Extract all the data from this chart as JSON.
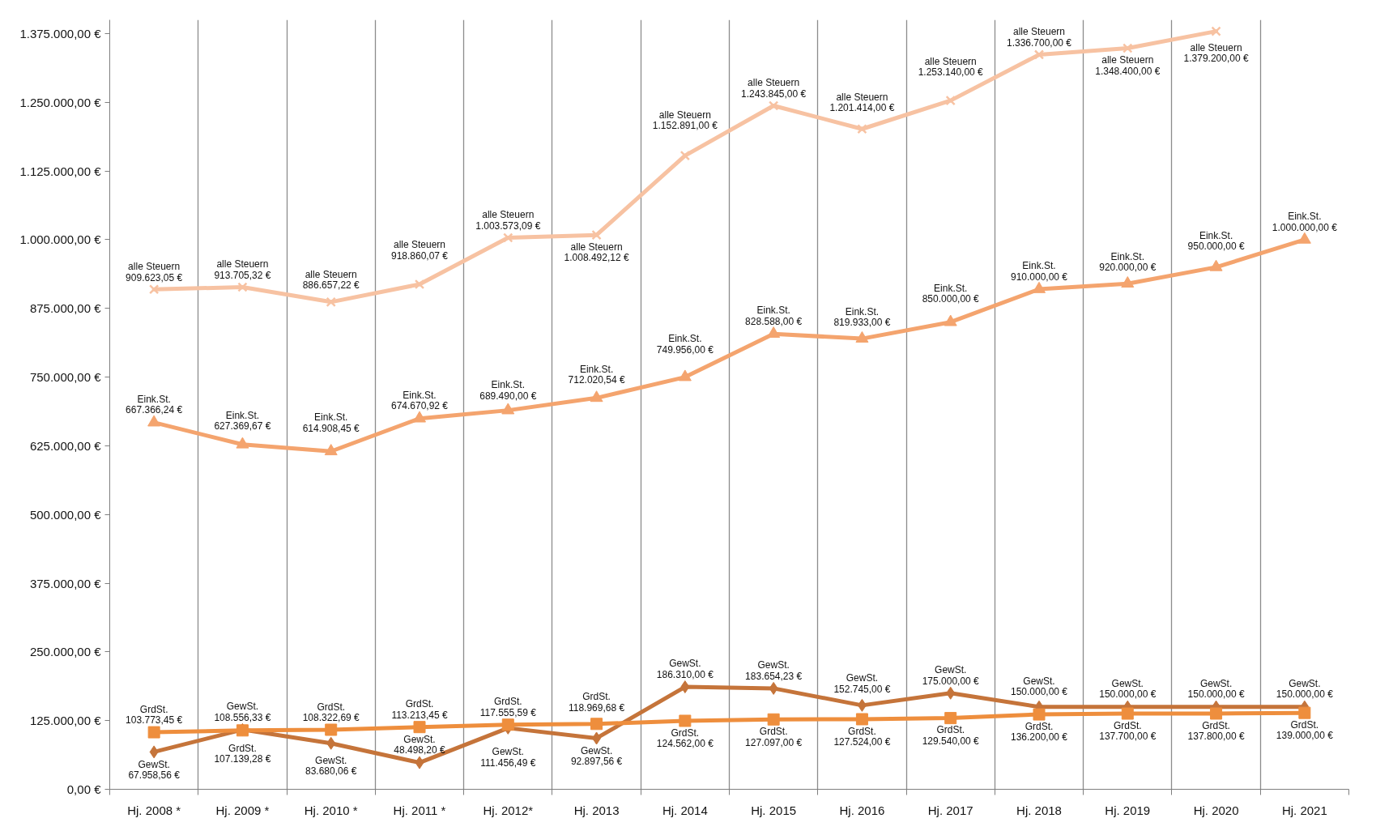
{
  "chart_data": {
    "type": "line",
    "categories": [
      "Hj. 2008 *",
      "Hj. 2009 *",
      "Hj. 2010 *",
      "Hj. 2011 *",
      "Hj. 2012*",
      "Hj. 2013",
      "Hj. 2014",
      "Hj. 2015",
      "Hj. 2016",
      "Hj. 2017",
      "Hj. 2018",
      "Hj. 2019",
      "Hj. 2020",
      "Hj. 2021"
    ],
    "ylim": [
      0,
      1400000
    ],
    "yticks": [
      {
        "value": 0,
        "label": "0,00 €"
      },
      {
        "value": 125000,
        "label": "125.000,00 €"
      },
      {
        "value": 250000,
        "label": "250.000,00 €"
      },
      {
        "value": 375000,
        "label": "375.000,00 €"
      },
      {
        "value": 500000,
        "label": "500.000,00 €"
      },
      {
        "value": 625000,
        "label": "625.000,00 €"
      },
      {
        "value": 750000,
        "label": "750.000,00 €"
      },
      {
        "value": 875000,
        "label": "875.000,00 €"
      },
      {
        "value": 1000000,
        "label": "1.000.000,00 €"
      },
      {
        "value": 1125000,
        "label": "1.125.000,00 €"
      },
      {
        "value": 1250000,
        "label": "1.250.000,00 €"
      },
      {
        "value": 1375000,
        "label": "1.375.000,00 €"
      }
    ],
    "grid": "x",
    "line_style": "solid",
    "series": [
      {
        "name": "alle Steuern",
        "color": "#f7c2a2",
        "marker": "cross",
        "values": [
          909623.05,
          913705.32,
          886657.22,
          918860.07,
          1003573.09,
          1008492.12,
          1152891.0,
          1243845.0,
          1201414.0,
          1253140.0,
          1336700.0,
          1348400.0,
          1379200.0,
          null
        ],
        "value_labels": [
          "909.623,05 €",
          "913.705,32 €",
          "886.657,22 €",
          "918.860,07 €",
          "1.003.573,09 €",
          "1.008.492,12 €",
          "1.152.891,00 €",
          "1.243.845,00 €",
          "1.201.414,00 €",
          "1.253.140,00 €",
          "1.336.700,00 €",
          "1.348.400,00 €",
          "1.379.200,00 €",
          null
        ]
      },
      {
        "name": "Eink.St.",
        "color": "#f4a46e",
        "marker": "triangle",
        "values": [
          667366.24,
          627369.67,
          614908.45,
          674670.92,
          689490.0,
          712020.54,
          749956.0,
          828588.0,
          819933.0,
          850000.0,
          910000.0,
          920000.0,
          950000.0,
          1000000.0
        ],
        "value_labels": [
          "667.366,24 €",
          "627.369,67 €",
          "614.908,45 €",
          "674.670,92 €",
          "689.490,00 €",
          "712.020,54 €",
          "749.956,00 €",
          "828.588,00 €",
          "819.933,00 €",
          "850.000,00 €",
          "910.000,00 €",
          "920.000,00 €",
          "950.000,00 €",
          "1.000.000,00 €"
        ]
      },
      {
        "name": "GewSt.",
        "color": "#c5743a",
        "marker": "diamond",
        "values": [
          67958.56,
          108556.33,
          83680.06,
          48498.2,
          111456.49,
          92897.56,
          186310.0,
          183654.23,
          152745.0,
          175000.0,
          150000.0,
          150000.0,
          150000.0,
          150000.0
        ],
        "value_labels": [
          "67.958,56 €",
          "108.556,33 €",
          "83.680,06 €",
          "48.498,20 €",
          "111.456,49 €",
          "92.897,56 €",
          "186.310,00 €",
          "183.654,23 €",
          "152.745,00 €",
          "175.000,00 €",
          "150.000,00 €",
          "150.000,00 €",
          "150.000,00 €",
          "150.000,00 €"
        ]
      },
      {
        "name": "GrdSt.",
        "color": "#ee8e3d",
        "marker": "square",
        "values": [
          103773.45,
          107139.28,
          108322.69,
          113213.45,
          117555.59,
          118969.68,
          124562.0,
          127097.0,
          127524.0,
          129540.0,
          136200.0,
          137700.0,
          137800.0,
          139000.0
        ],
        "value_labels": [
          "103.773,45 €",
          "107.139,28 €",
          "108.322,69 €",
          "113.213,45 €",
          "117.555,59 €",
          "118.969,68 €",
          "124.562,00 €",
          "127.097,00 €",
          "127.524,00 €",
          "129.540,00 €",
          "136.200,00 €",
          "137.700,00 €",
          "137.800,00 €",
          "139.000,00 €"
        ]
      }
    ]
  }
}
